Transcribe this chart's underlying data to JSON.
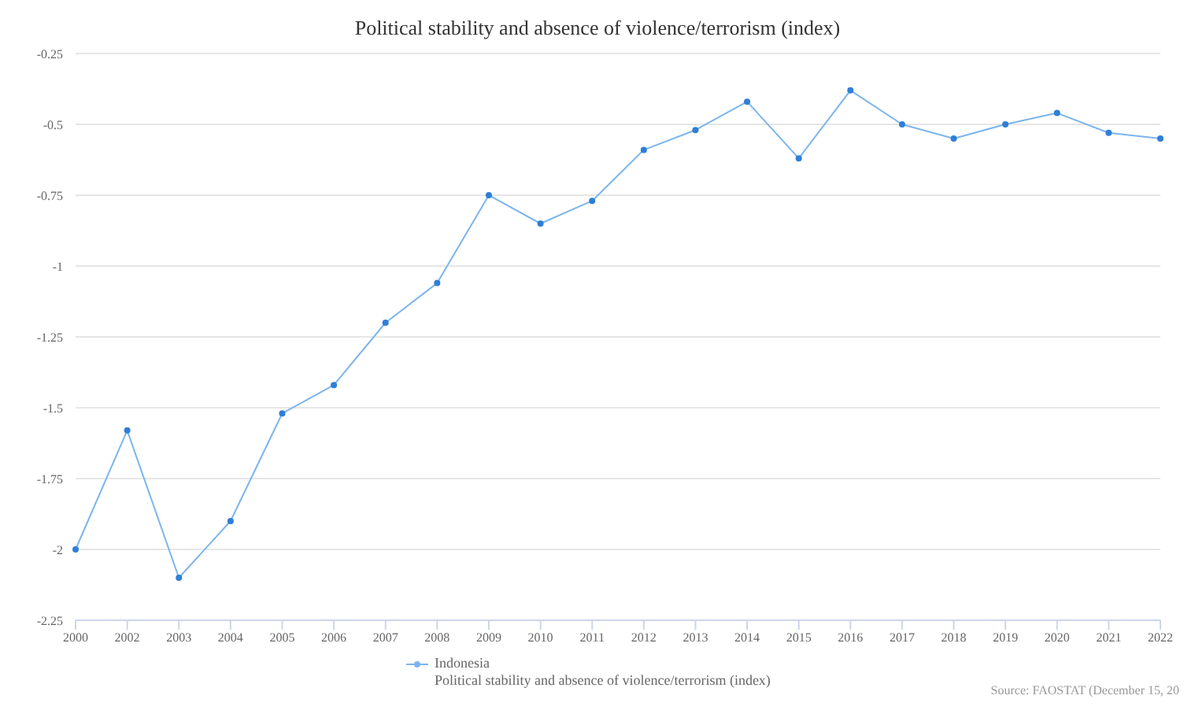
{
  "chart_data": {
    "type": "line",
    "title": "Political stability and absence of violence/terrorism (index)",
    "categories": [
      "2000",
      "2002",
      "2003",
      "2004",
      "2005",
      "2006",
      "2007",
      "2008",
      "2009",
      "2010",
      "2011",
      "2012",
      "2013",
      "2014",
      "2015",
      "2016",
      "2017",
      "2018",
      "2019",
      "2020",
      "2021",
      "2022"
    ],
    "series": [
      {
        "name": "Indonesia\nPolitical stability and absence of violence/terrorism (index)",
        "color": "#7cb5ec",
        "values": [
          -2.0,
          -1.58,
          -2.1,
          -1.9,
          -1.52,
          -1.42,
          -1.2,
          -1.06,
          -0.75,
          -0.85,
          -0.77,
          -0.59,
          -0.52,
          -0.42,
          -0.62,
          -0.38,
          -0.5,
          -0.55,
          -0.5,
          -0.46,
          -0.53,
          -0.55
        ]
      }
    ],
    "ylim": [
      -2.25,
      -0.25
    ],
    "yticks": [
      -2.25,
      -2,
      -1.75,
      -1.5,
      -1.25,
      -1,
      -0.75,
      -0.5,
      -0.25
    ],
    "grid": "y",
    "legend": "bottom",
    "marker": "circle",
    "line_style": "solid",
    "annotations": [
      "Source: FAOSTAT (December 15, 20"
    ]
  }
}
